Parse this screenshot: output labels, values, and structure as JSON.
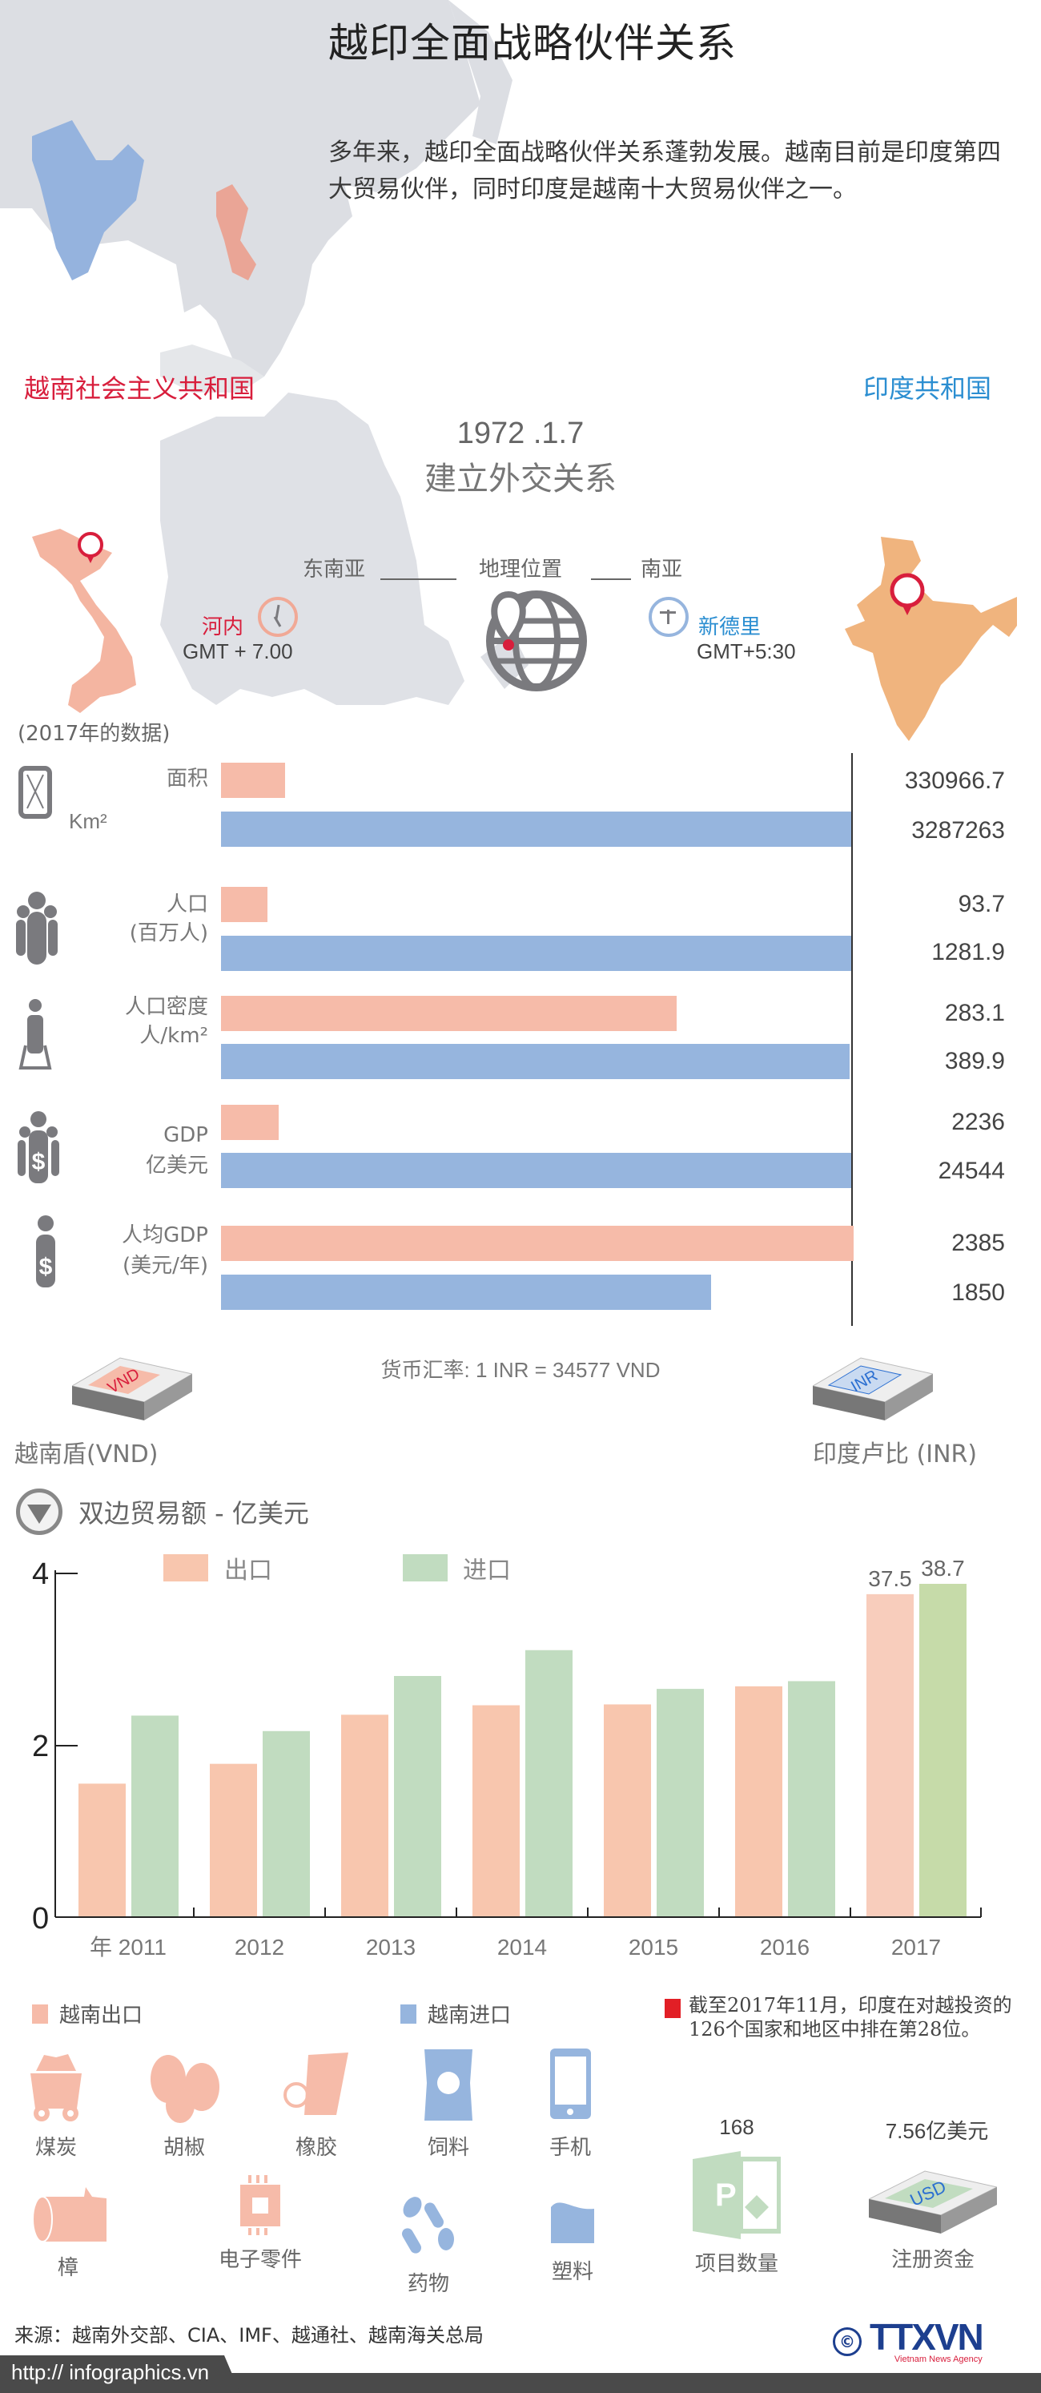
{
  "header": {
    "title": "越印全面战略伙伴关系",
    "intro": "多年来，越印全面战略伙伴关系蓬勃发展。越南目前是印度第四大贸易伙伴，同时印度是越南十大贸易伙伴之一。"
  },
  "countries": {
    "vietnam": {
      "name": "越南社会主义共和国",
      "capital": "河内",
      "timezone": "GMT + 7.00",
      "color": "#d81e3c"
    },
    "india": {
      "name": "印度共和国",
      "capital": "新德里",
      "timezone": "GMT+5:30",
      "color": "#2b8ed1"
    }
  },
  "relations": {
    "date": "1972 .1.7",
    "label": "建立外交关系"
  },
  "geography": {
    "left": "东南亚",
    "center": "地理位置",
    "right": "南亚"
  },
  "data_note": "(2017年的数据)",
  "comparison": {
    "metrics": [
      {
        "label": "面积",
        "unit": "Km²",
        "icon": "area-icon",
        "vietnam": "330966.7",
        "india": "3287263"
      },
      {
        "label": "人口",
        "unit": "(百万人)",
        "icon": "population-icon",
        "vietnam": "93.7",
        "india": "1281.9"
      },
      {
        "label": "人口密度",
        "unit": "人/km²",
        "icon": "density-icon",
        "vietnam": "283.1",
        "india": "389.9"
      },
      {
        "label": "GDP",
        "unit": "亿美元",
        "icon": "gdp-icon",
        "vietnam": "2236",
        "india": "24544"
      },
      {
        "label": "人均GDP",
        "unit": "(美元/年)",
        "icon": "gdp-per-capita-icon",
        "vietnam": "2385",
        "india": "1850"
      }
    ]
  },
  "currency": {
    "vnd_label": "越南盾(VND)",
    "inr_label": "印度卢比 (INR)",
    "vnd_note": "VND",
    "inr_note": "INR",
    "exchange_rate": "货币汇率: 1 INR = 34577 VND"
  },
  "trade": {
    "section_title": "双边贸易额 - 亿美元",
    "legend_export": "出口",
    "legend_import": "进口",
    "year_prefix": "年"
  },
  "chart_data": {
    "type": "bar",
    "title": "双边贸易额 - 亿美元",
    "xlabel": "年",
    "ylabel": "",
    "categories": [
      "2011",
      "2012",
      "2013",
      "2014",
      "2015",
      "2016",
      "2017"
    ],
    "series": [
      {
        "name": "出口",
        "color": "#f8c6ae",
        "values": [
          15.5,
          17.8,
          23.5,
          24.6,
          24.7,
          26.8,
          37.5
        ]
      },
      {
        "name": "进口",
        "color": "#c1dcc0",
        "values": [
          23.4,
          21.6,
          28.0,
          31.0,
          26.5,
          27.4,
          38.7
        ]
      }
    ],
    "yticks": [
      "0",
      "2",
      "4"
    ],
    "ylim": [
      0,
      4.2
    ],
    "axis_note": "y-axis ticks in tens (×10 亿美元)",
    "annotations": [
      {
        "category": "2017",
        "series": "出口",
        "label": "37.5"
      },
      {
        "category": "2017",
        "series": "进口",
        "label": "38.7"
      }
    ],
    "legend_position": "top-left",
    "grid": false
  },
  "goods": {
    "export_title": "越南出口",
    "import_title": "越南进口",
    "export_color": "#f6bba9",
    "import_color": "#96b5de",
    "exports": [
      {
        "label": "煤炭",
        "icon": "coal-cart-icon"
      },
      {
        "label": "胡椒",
        "icon": "pepper-icon"
      },
      {
        "label": "橡胶",
        "icon": "rubber-tree-icon"
      },
      {
        "label": "樟",
        "icon": "wood-log-icon"
      },
      {
        "label": "电子零件",
        "icon": "chip-icon"
      }
    ],
    "imports": [
      {
        "label": "饲料",
        "icon": "feed-bag-icon"
      },
      {
        "label": "手机",
        "icon": "phone-icon"
      },
      {
        "label": "药物",
        "icon": "pills-icon"
      },
      {
        "label": "塑料",
        "icon": "plastic-icon"
      }
    ]
  },
  "investment": {
    "note": "截至2017年11月，印度在对越投资的126个国家和地区中排在第28位。",
    "projects_value": "168",
    "projects_label": "项目数量",
    "capital_value": "7.56亿美元",
    "capital_label": "注册资金",
    "usd_note": "USD"
  },
  "footer": {
    "source": "来源：越南外交部、CIA、IMF、越通社、越南海关总局",
    "url": "http:// infographics.vn",
    "logo_symbol": "©",
    "logo_text": "TTXVN",
    "logo_sub": "Vietnam News Agency"
  }
}
